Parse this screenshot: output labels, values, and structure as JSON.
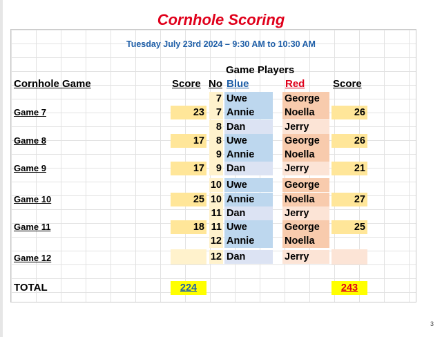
{
  "title": "Cornhole Scoring",
  "subtitle": "Tuesday July 23rd 2024 – 9:30 AM to 10:30 AM",
  "headers": {
    "game_players": "Game Players",
    "cornhole_game": "Cornhole Game",
    "score_left": "Score",
    "no": "No",
    "blue": "Blue",
    "red": "Red",
    "score_right": "Score"
  },
  "rows": [
    {
      "no": "7",
      "blue": "Uwe",
      "red": "George"
    },
    {
      "no": "7",
      "blue": "Annie",
      "red": "Noella",
      "game": "Game 7",
      "score_blue": "23",
      "score_red": "26"
    },
    {
      "no": "8",
      "blue": "Dan",
      "red": "Jerry"
    },
    {
      "no": "8",
      "blue": "Uwe",
      "red": "George",
      "game": "Game 8",
      "score_blue": "17",
      "score_red": "26"
    },
    {
      "no": "9",
      "blue": "Annie",
      "red": "Noella"
    },
    {
      "no": "9",
      "blue": "Dan",
      "red": "Jerry",
      "game": "Game 9",
      "score_blue": "17",
      "score_red": "21"
    },
    {
      "no": "10",
      "blue": "Uwe",
      "red": "George"
    },
    {
      "no": "10",
      "blue": "Annie",
      "red": "Noella",
      "game": "Game 10",
      "score_blue": "25",
      "score_red": "27"
    },
    {
      "no": "11",
      "blue": "Dan",
      "red": "Jerry"
    },
    {
      "no": "11",
      "blue": "Uwe",
      "red": "George",
      "game": "Game 11",
      "score_blue": "18",
      "score_red": "25"
    },
    {
      "no": "12",
      "blue": "Annie",
      "red": "Noella"
    },
    {
      "no": "12",
      "blue": "Dan",
      "red": "Jerry",
      "game": "Game 12",
      "score_blue": "",
      "score_red": ""
    }
  ],
  "total": {
    "label": "TOTAL",
    "blue": "224",
    "red": "243"
  },
  "page_number": "3",
  "colors": {
    "title_red": "#e0001b",
    "subtitle_blue": "#1f5fa8",
    "blue_fill": "#bdd7ee",
    "red_fill": "#f8cbad",
    "score_fill": "#ffe699",
    "total_fill": "#ffff00"
  }
}
